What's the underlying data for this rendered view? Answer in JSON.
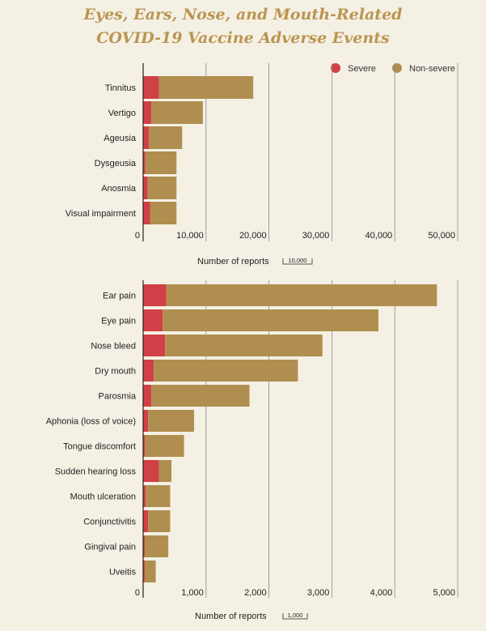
{
  "title_line1": "Eyes, Ears, Nose, and Mouth-Related",
  "title_line2": "COVID-19 Vaccine Adverse Events",
  "legend": {
    "severe": "Severe",
    "non_severe": "Non-severe"
  },
  "colors": {
    "severe": "#d13f47",
    "non_severe": "#b08e50",
    "grid": "#8a8a8a",
    "title": "#bb9550"
  },
  "chart_data": [
    {
      "type": "bar",
      "orientation": "horizontal",
      "stacked": true,
      "categories": [
        "Tinnitus",
        "Vertigo",
        "Ageusia",
        "Dysgeusia",
        "Anosmia",
        "Visual impairment"
      ],
      "series": [
        {
          "name": "Severe",
          "values": [
            2500,
            1300,
            900,
            350,
            700,
            1100
          ]
        },
        {
          "name": "Non-severe",
          "values": [
            15000,
            8200,
            5300,
            4950,
            4600,
            4200
          ]
        }
      ],
      "xlabel": "Number of reports",
      "scale_note": "10,000",
      "xlim": [
        0,
        50000
      ],
      "ticks": [
        0,
        10000,
        20000,
        30000,
        40000,
        50000
      ],
      "tick_labels": [
        "0",
        "10,000",
        "20,000",
        "30,000",
        "40,000",
        "50,000"
      ]
    },
    {
      "type": "bar",
      "orientation": "horizontal",
      "stacked": true,
      "categories": [
        "Ear pain",
        "Eye pain",
        "Nose bleed",
        "Dry mouth",
        "Parosmia",
        "Aphonia (loss of voice)",
        "Tongue discomfort",
        "Sudden hearing loss",
        "Mouth ulceration",
        "Conjunctivitis",
        "Gingival pain",
        "Uveitis"
      ],
      "series": [
        {
          "name": "Severe",
          "values": [
            370,
            310,
            350,
            170,
            130,
            80,
            30,
            250,
            40,
            80,
            25,
            25
          ]
        },
        {
          "name": "Non-severe",
          "values": [
            4300,
            3430,
            2500,
            2290,
            1560,
            730,
            620,
            200,
            390,
            350,
            375,
            175
          ]
        }
      ],
      "xlabel": "Number of reports",
      "scale_note": "1,000",
      "xlim": [
        0,
        5000
      ],
      "ticks": [
        0,
        1000,
        2000,
        3000,
        4000,
        5000
      ],
      "tick_labels": [
        "0",
        "1,000",
        "2,000",
        "3,000",
        "4,000",
        "5,000"
      ]
    }
  ]
}
